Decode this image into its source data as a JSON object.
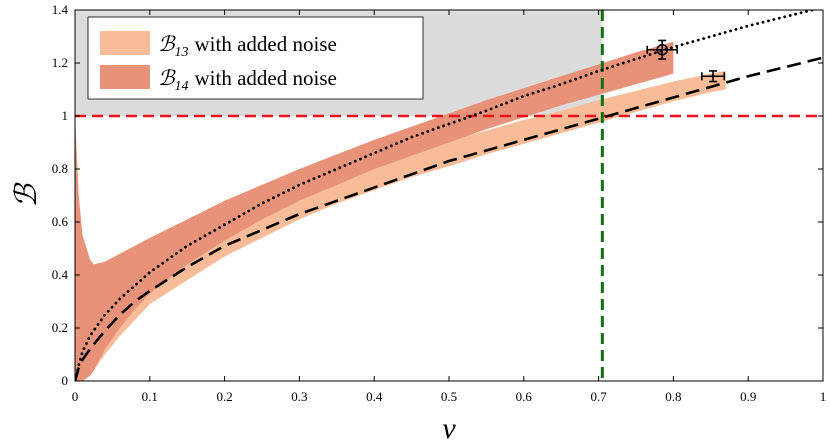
{
  "chart_data": {
    "type": "line",
    "title": "",
    "xlabel": "v",
    "ylabel": "ℬ",
    "xlim": [
      0,
      1
    ],
    "ylim": [
      0,
      1.4
    ],
    "xticks": [
      "0",
      "0.1",
      "0.2",
      "0.3",
      "0.4",
      "0.5",
      "0.6",
      "0.7",
      "0.8",
      "0.9",
      "1"
    ],
    "yticks": [
      "0",
      "0.2",
      "0.4",
      "0.6",
      "0.8",
      "1",
      "1.2",
      "1.4"
    ],
    "legend": {
      "position": "top-left",
      "entries": [
        {
          "symbol": "ℬ",
          "subscript": "13",
          "text": "with added noise",
          "color": "#f8bc98"
        },
        {
          "symbol": "ℬ",
          "subscript": "14",
          "text": "with added noise",
          "color": "#e8927a"
        }
      ]
    },
    "shaded_region": {
      "x": [
        0,
        0.705
      ],
      "y": [
        1,
        1.4
      ],
      "color": "#dcdcdc"
    },
    "reference_lines": [
      {
        "orientation": "horizontal",
        "value": 1.0,
        "color": "#e8141e",
        "style": "dashed"
      },
      {
        "orientation": "vertical",
        "value": 0.705,
        "color": "#127012",
        "style": "dashed"
      }
    ],
    "bands": [
      {
        "name": "B13 with added noise",
        "color": "#f8bc98",
        "x": [
          0.0,
          0.01,
          0.02,
          0.04,
          0.06,
          0.08,
          0.1,
          0.15,
          0.2,
          0.25,
          0.3,
          0.35,
          0.4,
          0.45,
          0.5,
          0.55,
          0.6,
          0.65,
          0.7,
          0.75,
          0.8,
          0.85,
          0.87
        ],
        "upper": [
          0.1,
          0.2,
          0.26,
          0.33,
          0.38,
          0.42,
          0.46,
          0.54,
          0.61,
          0.67,
          0.72,
          0.77,
          0.82,
          0.865,
          0.905,
          0.945,
          0.985,
          1.02,
          1.06,
          1.095,
          1.13,
          1.16,
          1.17
        ],
        "lower": [
          0.0,
          0.0,
          0.02,
          0.1,
          0.17,
          0.23,
          0.29,
          0.38,
          0.47,
          0.54,
          0.61,
          0.67,
          0.72,
          0.77,
          0.81,
          0.855,
          0.895,
          0.935,
          0.975,
          1.015,
          1.055,
          1.09,
          1.1
        ]
      },
      {
        "name": "B14 with added noise",
        "color": "#e8927a",
        "x": [
          0.0,
          0.005,
          0.01,
          0.02,
          0.025,
          0.04,
          0.06,
          0.08,
          0.1,
          0.15,
          0.2,
          0.25,
          0.3,
          0.35,
          0.4,
          0.45,
          0.5,
          0.55,
          0.6,
          0.65,
          0.7,
          0.75,
          0.8
        ],
        "upper": [
          1.0,
          0.7,
          0.55,
          0.46,
          0.44,
          0.45,
          0.48,
          0.51,
          0.54,
          0.61,
          0.68,
          0.74,
          0.8,
          0.855,
          0.91,
          0.96,
          1.01,
          1.06,
          1.105,
          1.15,
          1.195,
          1.24,
          1.28
        ],
        "lower": [
          0.0,
          0.0,
          0.0,
          0.02,
          0.04,
          0.12,
          0.2,
          0.27,
          0.33,
          0.44,
          0.53,
          0.61,
          0.68,
          0.74,
          0.8,
          0.85,
          0.9,
          0.95,
          0.995,
          1.04,
          1.08,
          1.12,
          1.16
        ]
      }
    ],
    "series": [
      {
        "name": "dotted curve",
        "style": "dotted",
        "color": "#000000",
        "x": [
          0.0,
          0.005,
          0.01,
          0.02,
          0.04,
          0.06,
          0.08,
          0.1,
          0.15,
          0.2,
          0.25,
          0.3,
          0.35,
          0.4,
          0.45,
          0.5,
          0.55,
          0.6,
          0.65,
          0.7,
          0.75,
          0.8,
          0.85,
          0.9,
          0.95,
          1.0
        ],
        "y": [
          0.0,
          0.06,
          0.11,
          0.17,
          0.25,
          0.31,
          0.36,
          0.41,
          0.51,
          0.59,
          0.67,
          0.74,
          0.8,
          0.86,
          0.92,
          0.97,
          1.02,
          1.075,
          1.12,
          1.17,
          1.215,
          1.26,
          1.3,
          1.34,
          1.375,
          1.41
        ]
      },
      {
        "name": "dashed curve",
        "style": "dashed",
        "color": "#000000",
        "x": [
          0.0,
          0.005,
          0.01,
          0.02,
          0.04,
          0.06,
          0.08,
          0.1,
          0.15,
          0.2,
          0.25,
          0.3,
          0.35,
          0.4,
          0.45,
          0.5,
          0.55,
          0.6,
          0.65,
          0.7,
          0.75,
          0.8,
          0.85,
          0.9,
          0.95,
          1.0
        ],
        "y": [
          0.0,
          0.05,
          0.08,
          0.12,
          0.19,
          0.25,
          0.3,
          0.34,
          0.43,
          0.51,
          0.57,
          0.63,
          0.68,
          0.73,
          0.78,
          0.83,
          0.87,
          0.91,
          0.95,
          0.99,
          1.03,
          1.07,
          1.11,
          1.15,
          1.185,
          1.22
        ]
      }
    ],
    "markers": [
      {
        "x": 0.785,
        "y": 1.25,
        "xerr": 0.02,
        "yerr": 0.035,
        "style": "circle"
      },
      {
        "x": 0.853,
        "y": 1.15,
        "xerr": 0.015,
        "yerr": 0.02,
        "style": "point"
      }
    ]
  }
}
